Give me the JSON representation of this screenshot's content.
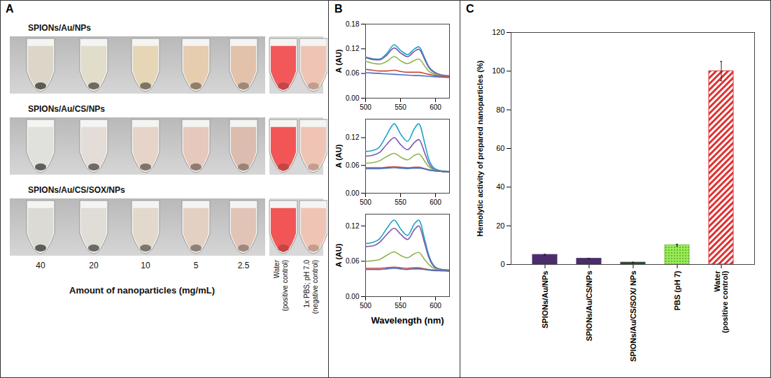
{
  "panel_a": {
    "panel": "A",
    "rows": [
      {
        "label": "SPIONs/Au/NPs",
        "colors": [
          "#dcd6c8",
          "#e2dccb",
          "#e6d6b6",
          "#e6cdb0",
          "#e2c2aa",
          "#f2585a",
          "#f0c4b4"
        ]
      },
      {
        "label": "SPIONs/Au/CS/NPs",
        "colors": [
          "#e0e0dc",
          "#e4dcd6",
          "#e6d4c8",
          "#e6c8bc",
          "#dcbcae",
          "#f25556",
          "#f0c4b4"
        ]
      },
      {
        "label": "SPIONs/Au/CS/SOX/NPs",
        "colors": [
          "#dcdad4",
          "#e0dcd6",
          "#e2d8cc",
          "#e4d0c2",
          "#e2c4b6",
          "#f25556",
          "#f0c4b4"
        ]
      }
    ],
    "concentrations": [
      40,
      20,
      10,
      5,
      2.5
    ],
    "controls": [
      "Water (positive control)",
      "1x PBS; pH 7.0 (negative control)"
    ],
    "x_label": "Amount of nanoparticles (mg/mL)"
  },
  "chart_data": [
    {
      "type": "line",
      "panel": "B",
      "y_label": "A (AU)",
      "x": [
        500,
        510,
        520,
        530,
        541,
        550,
        560,
        570,
        576,
        585,
        590,
        600,
        610,
        620
      ],
      "xlim": [
        500,
        620
      ],
      "xticks": [
        500,
        550,
        600
      ],
      "ylim": [
        0,
        0.18
      ],
      "yticks": [
        {
          "value": 0,
          "label": "0.00"
        },
        {
          "value": 0.06,
          "label": "0.06"
        },
        {
          "value": 0.12,
          "label": "0.12"
        },
        {
          "value": 0.18,
          "label": "0.18"
        }
      ],
      "series": [
        {
          "color": "#1ba3c6",
          "values": [
            0.1,
            0.096,
            0.095,
            0.108,
            0.13,
            0.116,
            0.106,
            0.12,
            0.125,
            0.096,
            0.078,
            0.062,
            0.056,
            0.054
          ]
        },
        {
          "color": "#7e57a8",
          "values": [
            0.099,
            0.094,
            0.093,
            0.104,
            0.122,
            0.11,
            0.101,
            0.114,
            0.119,
            0.092,
            0.075,
            0.061,
            0.056,
            0.054
          ]
        },
        {
          "color": "#8db64c",
          "values": [
            0.09,
            0.085,
            0.083,
            0.089,
            0.101,
            0.091,
            0.084,
            0.092,
            0.095,
            0.077,
            0.066,
            0.058,
            0.054,
            0.053
          ]
        },
        {
          "color": "#c9463d",
          "values": [
            0.07,
            0.068,
            0.066,
            0.066,
            0.068,
            0.065,
            0.063,
            0.063,
            0.063,
            0.06,
            0.058,
            0.055,
            0.053,
            0.052
          ]
        },
        {
          "color": "#4472c4",
          "values": [
            0.062,
            0.061,
            0.06,
            0.059,
            0.058,
            0.057,
            0.056,
            0.055,
            0.055,
            0.054,
            0.053,
            0.052,
            0.051,
            0.05
          ]
        }
      ]
    },
    {
      "type": "line",
      "y_label": "A (AU)",
      "x": [
        500,
        510,
        520,
        530,
        541,
        550,
        560,
        570,
        576,
        585,
        590,
        600,
        610,
        620
      ],
      "xlim": [
        500,
        620
      ],
      "xticks": [
        500,
        550,
        600
      ],
      "ylim": [
        0,
        0.16
      ],
      "yticks": [
        {
          "value": 0,
          "label": "0.00"
        },
        {
          "value": 0.06,
          "label": "0.06"
        },
        {
          "value": 0.12,
          "label": "0.12"
        }
      ],
      "series": [
        {
          "color": "#1ba3c6",
          "values": [
            0.09,
            0.092,
            0.1,
            0.125,
            0.15,
            0.128,
            0.112,
            0.14,
            0.15,
            0.105,
            0.075,
            0.052,
            0.048,
            0.047
          ]
        },
        {
          "color": "#7e57a8",
          "values": [
            0.08,
            0.082,
            0.088,
            0.105,
            0.12,
            0.105,
            0.094,
            0.11,
            0.116,
            0.085,
            0.066,
            0.05,
            0.047,
            0.046
          ]
        },
        {
          "color": "#8db64c",
          "values": [
            0.065,
            0.066,
            0.07,
            0.079,
            0.086,
            0.078,
            0.072,
            0.082,
            0.085,
            0.068,
            0.058,
            0.049,
            0.047,
            0.046
          ]
        },
        {
          "color": "#c9463d",
          "values": [
            0.055,
            0.055,
            0.055,
            0.056,
            0.057,
            0.056,
            0.055,
            0.056,
            0.056,
            0.053,
            0.051,
            0.048,
            0.047,
            0.046
          ]
        },
        {
          "color": "#4472c4",
          "values": [
            0.053,
            0.053,
            0.053,
            0.054,
            0.055,
            0.054,
            0.053,
            0.054,
            0.054,
            0.052,
            0.05,
            0.048,
            0.047,
            0.046
          ]
        }
      ]
    },
    {
      "type": "line",
      "y_label": "A (AU)",
      "x_label": "Wavelength (nm)",
      "x": [
        500,
        510,
        520,
        530,
        541,
        550,
        560,
        570,
        576,
        585,
        590,
        600,
        610,
        620
      ],
      "xlim": [
        500,
        620
      ],
      "xticks": [
        500,
        550,
        600
      ],
      "ylim": [
        0,
        0.14
      ],
      "yticks": [
        {
          "value": 0,
          "label": "0.00"
        },
        {
          "value": 0.06,
          "label": "0.06"
        },
        {
          "value": 0.12,
          "label": "0.12"
        }
      ],
      "series": [
        {
          "color": "#1ba3c6",
          "values": [
            0.09,
            0.092,
            0.098,
            0.115,
            0.13,
            0.115,
            0.104,
            0.124,
            0.13,
            0.095,
            0.072,
            0.05,
            0.046,
            0.045
          ]
        },
        {
          "color": "#7e57a8",
          "values": [
            0.085,
            0.086,
            0.092,
            0.105,
            0.116,
            0.106,
            0.097,
            0.114,
            0.12,
            0.088,
            0.068,
            0.049,
            0.046,
            0.045
          ]
        },
        {
          "color": "#8db64c",
          "values": [
            0.06,
            0.061,
            0.063,
            0.07,
            0.076,
            0.07,
            0.066,
            0.073,
            0.075,
            0.062,
            0.055,
            0.047,
            0.045,
            0.044
          ]
        },
        {
          "color": "#c9463d",
          "values": [
            0.048,
            0.048,
            0.048,
            0.049,
            0.05,
            0.049,
            0.048,
            0.049,
            0.049,
            0.047,
            0.046,
            0.045,
            0.044,
            0.044
          ]
        },
        {
          "color": "#4472c4",
          "values": [
            0.046,
            0.046,
            0.046,
            0.047,
            0.048,
            0.047,
            0.046,
            0.047,
            0.047,
            0.046,
            0.045,
            0.044,
            0.044,
            0.043
          ]
        }
      ]
    },
    {
      "type": "bar",
      "panel": "C",
      "y_label": "Hemolytic activity of prepared nanoparticles (%)",
      "categories": [
        "SPIONs/Au/NPs",
        "SPIONs/Au/CS/NPs",
        "SPIONs/Au/CS/SOX/ NPs",
        "PBS (pH 7)",
        "Water (positive control)"
      ],
      "values": [
        5,
        3,
        1,
        10,
        100
      ],
      "errors": [
        0.3,
        0.2,
        0.2,
        0.5,
        5
      ],
      "colors": [
        "#4b2d6b",
        "#4b2d6b",
        "#2f4a35",
        "#7ac143",
        "#e03030"
      ],
      "ylim": [
        0,
        120
      ],
      "yticks": [
        0,
        20,
        40,
        60,
        80,
        100,
        120
      ]
    }
  ]
}
